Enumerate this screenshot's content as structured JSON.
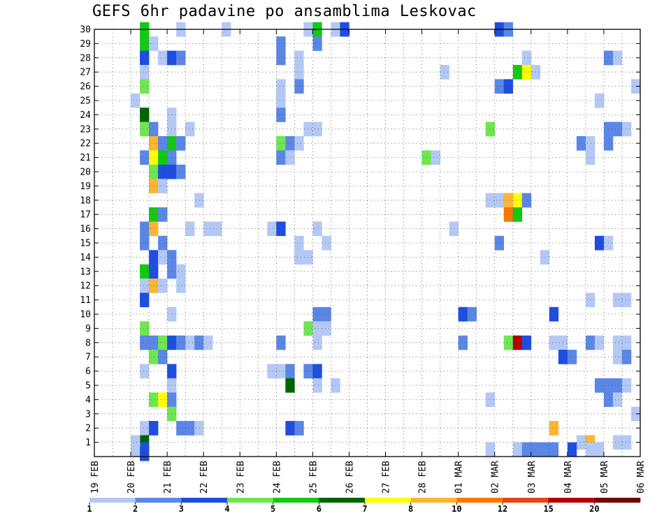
{
  "chart_data": {
    "type": "heatmap",
    "title": "GEFS 6hr padavine po ansamblima Leskovac",
    "xlabel": "",
    "ylabel": "",
    "y_ticks": [
      1,
      2,
      3,
      4,
      5,
      6,
      7,
      8,
      9,
      10,
      11,
      12,
      13,
      14,
      15,
      16,
      17,
      18,
      19,
      20,
      21,
      22,
      23,
      24,
      25,
      26,
      27,
      28,
      29,
      30
    ],
    "ylim": [
      0,
      30
    ],
    "x_ticks": [
      "19 FEB",
      "20 FEB",
      "21 FEB",
      "22 FEB",
      "23 FEB",
      "24 FEB",
      "25 FEB",
      "26 FEB",
      "27 FEB",
      "28 FEB",
      "01 MAR",
      "02 MAR",
      "03 MAR",
      "04 MAR",
      "05 MAR",
      "06 MAR"
    ],
    "x_units": "6-hour steps from 19 FEB 00z",
    "xlim": [
      0,
      60
    ],
    "grid": true,
    "colorbar": {
      "levels": [
        "1",
        "2",
        "3",
        "4",
        "5",
        "6",
        "7",
        "8",
        "10",
        "12",
        "15",
        "20"
      ],
      "colors": [
        "#b4c8f5",
        "#5a87e6",
        "#1e4ee0",
        "#6ee650",
        "#14c814",
        "#006400",
        "#ffff00",
        "#ffb432",
        "#fa7800",
        "#e14614",
        "#b40000",
        "#6e0a0a"
      ]
    },
    "cells": [
      [
        5,
        30,
        4
      ],
      [
        5,
        29,
        4
      ],
      [
        5,
        28,
        2
      ],
      [
        5,
        27,
        0
      ],
      [
        5,
        26,
        3
      ],
      [
        5,
        24,
        5
      ],
      [
        5,
        23,
        3
      ],
      [
        5,
        21,
        1
      ],
      [
        5,
        16,
        1
      ],
      [
        5,
        15,
        1
      ],
      [
        5,
        13,
        4
      ],
      [
        5,
        12,
        0
      ],
      [
        5,
        11,
        2
      ],
      [
        5,
        9,
        3
      ],
      [
        5,
        8,
        1
      ],
      [
        5,
        6,
        0
      ],
      [
        5,
        2,
        0
      ],
      [
        5,
        1,
        5
      ],
      [
        5,
        0.5,
        2
      ],
      [
        4,
        25,
        0
      ],
      [
        4,
        1,
        0
      ],
      [
        6,
        29,
        0
      ],
      [
        6,
        23,
        1
      ],
      [
        6,
        22,
        7
      ],
      [
        6,
        21,
        6
      ],
      [
        6,
        20,
        3
      ],
      [
        6,
        19,
        7
      ],
      [
        6,
        17,
        4
      ],
      [
        6,
        16,
        7
      ],
      [
        6,
        14,
        2
      ],
      [
        6,
        13,
        2
      ],
      [
        6,
        12,
        7
      ],
      [
        6,
        8,
        1
      ],
      [
        6,
        7,
        3
      ],
      [
        6,
        4,
        3
      ],
      [
        6,
        2,
        2
      ],
      [
        7,
        28,
        0
      ],
      [
        7,
        22,
        1
      ],
      [
        7,
        21,
        4
      ],
      [
        7,
        20,
        2
      ],
      [
        7,
        19,
        0
      ],
      [
        7,
        17,
        1
      ],
      [
        7,
        15,
        1
      ],
      [
        7,
        14,
        0
      ],
      [
        7,
        12,
        0
      ],
      [
        7,
        8,
        3
      ],
      [
        7,
        7,
        1
      ],
      [
        7,
        4,
        6
      ],
      [
        8,
        28,
        2
      ],
      [
        8,
        24,
        0
      ],
      [
        8,
        23,
        0
      ],
      [
        8,
        22,
        4
      ],
      [
        8,
        21,
        1
      ],
      [
        8,
        20,
        2
      ],
      [
        8,
        14,
        1
      ],
      [
        8,
        13,
        1
      ],
      [
        8,
        10,
        0
      ],
      [
        8,
        8,
        2
      ],
      [
        8,
        6,
        2
      ],
      [
        8,
        5,
        0
      ],
      [
        8,
        4,
        1
      ],
      [
        8,
        3,
        3
      ],
      [
        9,
        30,
        0
      ],
      [
        9,
        28,
        1
      ],
      [
        9,
        22,
        1
      ],
      [
        9,
        20,
        1
      ],
      [
        9,
        13,
        0
      ],
      [
        9,
        12,
        0
      ],
      [
        9,
        8,
        1
      ],
      [
        9,
        2,
        1
      ],
      [
        10,
        23,
        0
      ],
      [
        10,
        16,
        0
      ],
      [
        10,
        8,
        0
      ],
      [
        10,
        2,
        1
      ],
      [
        11,
        18,
        0
      ],
      [
        11,
        8,
        1
      ],
      [
        11,
        2,
        0
      ],
      [
        12,
        16,
        0
      ],
      [
        12,
        8,
        0
      ],
      [
        13,
        16,
        0
      ],
      [
        14,
        30,
        0
      ],
      [
        19,
        16,
        0
      ],
      [
        19,
        6,
        0
      ],
      [
        20,
        29,
        1
      ],
      [
        20,
        28,
        1
      ],
      [
        20,
        26,
        0
      ],
      [
        20,
        25,
        0
      ],
      [
        20,
        24,
        1
      ],
      [
        20,
        22,
        3
      ],
      [
        20,
        21,
        1
      ],
      [
        20,
        16,
        2
      ],
      [
        20,
        8,
        1
      ],
      [
        20,
        6,
        0
      ],
      [
        21,
        22,
        1
      ],
      [
        21,
        21,
        0
      ],
      [
        21,
        6,
        1
      ],
      [
        21,
        5,
        5
      ],
      [
        21,
        2,
        2
      ],
      [
        22,
        28,
        0
      ],
      [
        22,
        27,
        0
      ],
      [
        22,
        26,
        1
      ],
      [
        22,
        22,
        0
      ],
      [
        22,
        15,
        0
      ],
      [
        22,
        14,
        0
      ],
      [
        22,
        2,
        1
      ],
      [
        23,
        30,
        0
      ],
      [
        23,
        23,
        0
      ],
      [
        23,
        14,
        0
      ],
      [
        23,
        9,
        3
      ],
      [
        23,
        6,
        1
      ],
      [
        24,
        30,
        4
      ],
      [
        24,
        29,
        1
      ],
      [
        24,
        23,
        0
      ],
      [
        24,
        16,
        0
      ],
      [
        24,
        10,
        1
      ],
      [
        24,
        9,
        0
      ],
      [
        24,
        8,
        0
      ],
      [
        24,
        6,
        2
      ],
      [
        24,
        5,
        0
      ],
      [
        25,
        15,
        0
      ],
      [
        25,
        10,
        1
      ],
      [
        25,
        9,
        0
      ],
      [
        26,
        30,
        0
      ],
      [
        26,
        5,
        0
      ],
      [
        27,
        30,
        2
      ],
      [
        36,
        21,
        3
      ],
      [
        37,
        21,
        0
      ],
      [
        38,
        27,
        0
      ],
      [
        39,
        16,
        0
      ],
      [
        40,
        10,
        2
      ],
      [
        40,
        8,
        1
      ],
      [
        41,
        10,
        1
      ],
      [
        43,
        23,
        3
      ],
      [
        43,
        18,
        0
      ],
      [
        43,
        4,
        0
      ],
      [
        44,
        30,
        2
      ],
      [
        44,
        26,
        1
      ],
      [
        44,
        18,
        0
      ],
      [
        44,
        15,
        1
      ],
      [
        45,
        30,
        1
      ],
      [
        45,
        26,
        2
      ],
      [
        45,
        18,
        7
      ],
      [
        45,
        17,
        8
      ],
      [
        45,
        8,
        3
      ],
      [
        46,
        27,
        4
      ],
      [
        46,
        18,
        6
      ],
      [
        46,
        17,
        4
      ],
      [
        46,
        8,
        10
      ],
      [
        47,
        28,
        0
      ],
      [
        47,
        27,
        6
      ],
      [
        47,
        18,
        1
      ],
      [
        47,
        8,
        2
      ],
      [
        48,
        27,
        0
      ],
      [
        49,
        0.5,
        1
      ],
      [
        50,
        0.5,
        1
      ],
      [
        50,
        10,
        2
      ],
      [
        49,
        14,
        0
      ],
      [
        50,
        8,
        0
      ],
      [
        51,
        8,
        0
      ],
      [
        50,
        2,
        7
      ],
      [
        51,
        7,
        2
      ],
      [
        52,
        7,
        1
      ],
      [
        53,
        22,
        1
      ],
      [
        53,
        1,
        0
      ],
      [
        54,
        22,
        0
      ],
      [
        54,
        21,
        0
      ],
      [
        54,
        11,
        0
      ],
      [
        54,
        8,
        1
      ],
      [
        54,
        1,
        7
      ],
      [
        55,
        25,
        0
      ],
      [
        55,
        15,
        2
      ],
      [
        55,
        8,
        0
      ],
      [
        55,
        5,
        1
      ],
      [
        56,
        28,
        1
      ],
      [
        56,
        23,
        1
      ],
      [
        56,
        22,
        1
      ],
      [
        56,
        15,
        0
      ],
      [
        56,
        5,
        1
      ],
      [
        56,
        4,
        1
      ],
      [
        57,
        28,
        0
      ],
      [
        57,
        23,
        1
      ],
      [
        57,
        11,
        0
      ],
      [
        57,
        8,
        0
      ],
      [
        57,
        7,
        0
      ],
      [
        57,
        5,
        1
      ],
      [
        57,
        4,
        0
      ],
      [
        57,
        1,
        0
      ],
      [
        58,
        23,
        0
      ],
      [
        58,
        11,
        0
      ],
      [
        58,
        8,
        0
      ],
      [
        58,
        7,
        1
      ],
      [
        58,
        5,
        0
      ],
      [
        58,
        1,
        0
      ],
      [
        59,
        26,
        0
      ],
      [
        59,
        3,
        0
      ],
      [
        54,
        0.5,
        0
      ],
      [
        55,
        0.5,
        0
      ],
      [
        52,
        0.5,
        2
      ],
      [
        43,
        0.5,
        0
      ],
      [
        46,
        0.5,
        0
      ],
      [
        47,
        0.5,
        1
      ],
      [
        48,
        0.5,
        1
      ],
      [
        4,
        0.5,
        0
      ],
      [
        5,
        0.2,
        2
      ]
    ]
  }
}
